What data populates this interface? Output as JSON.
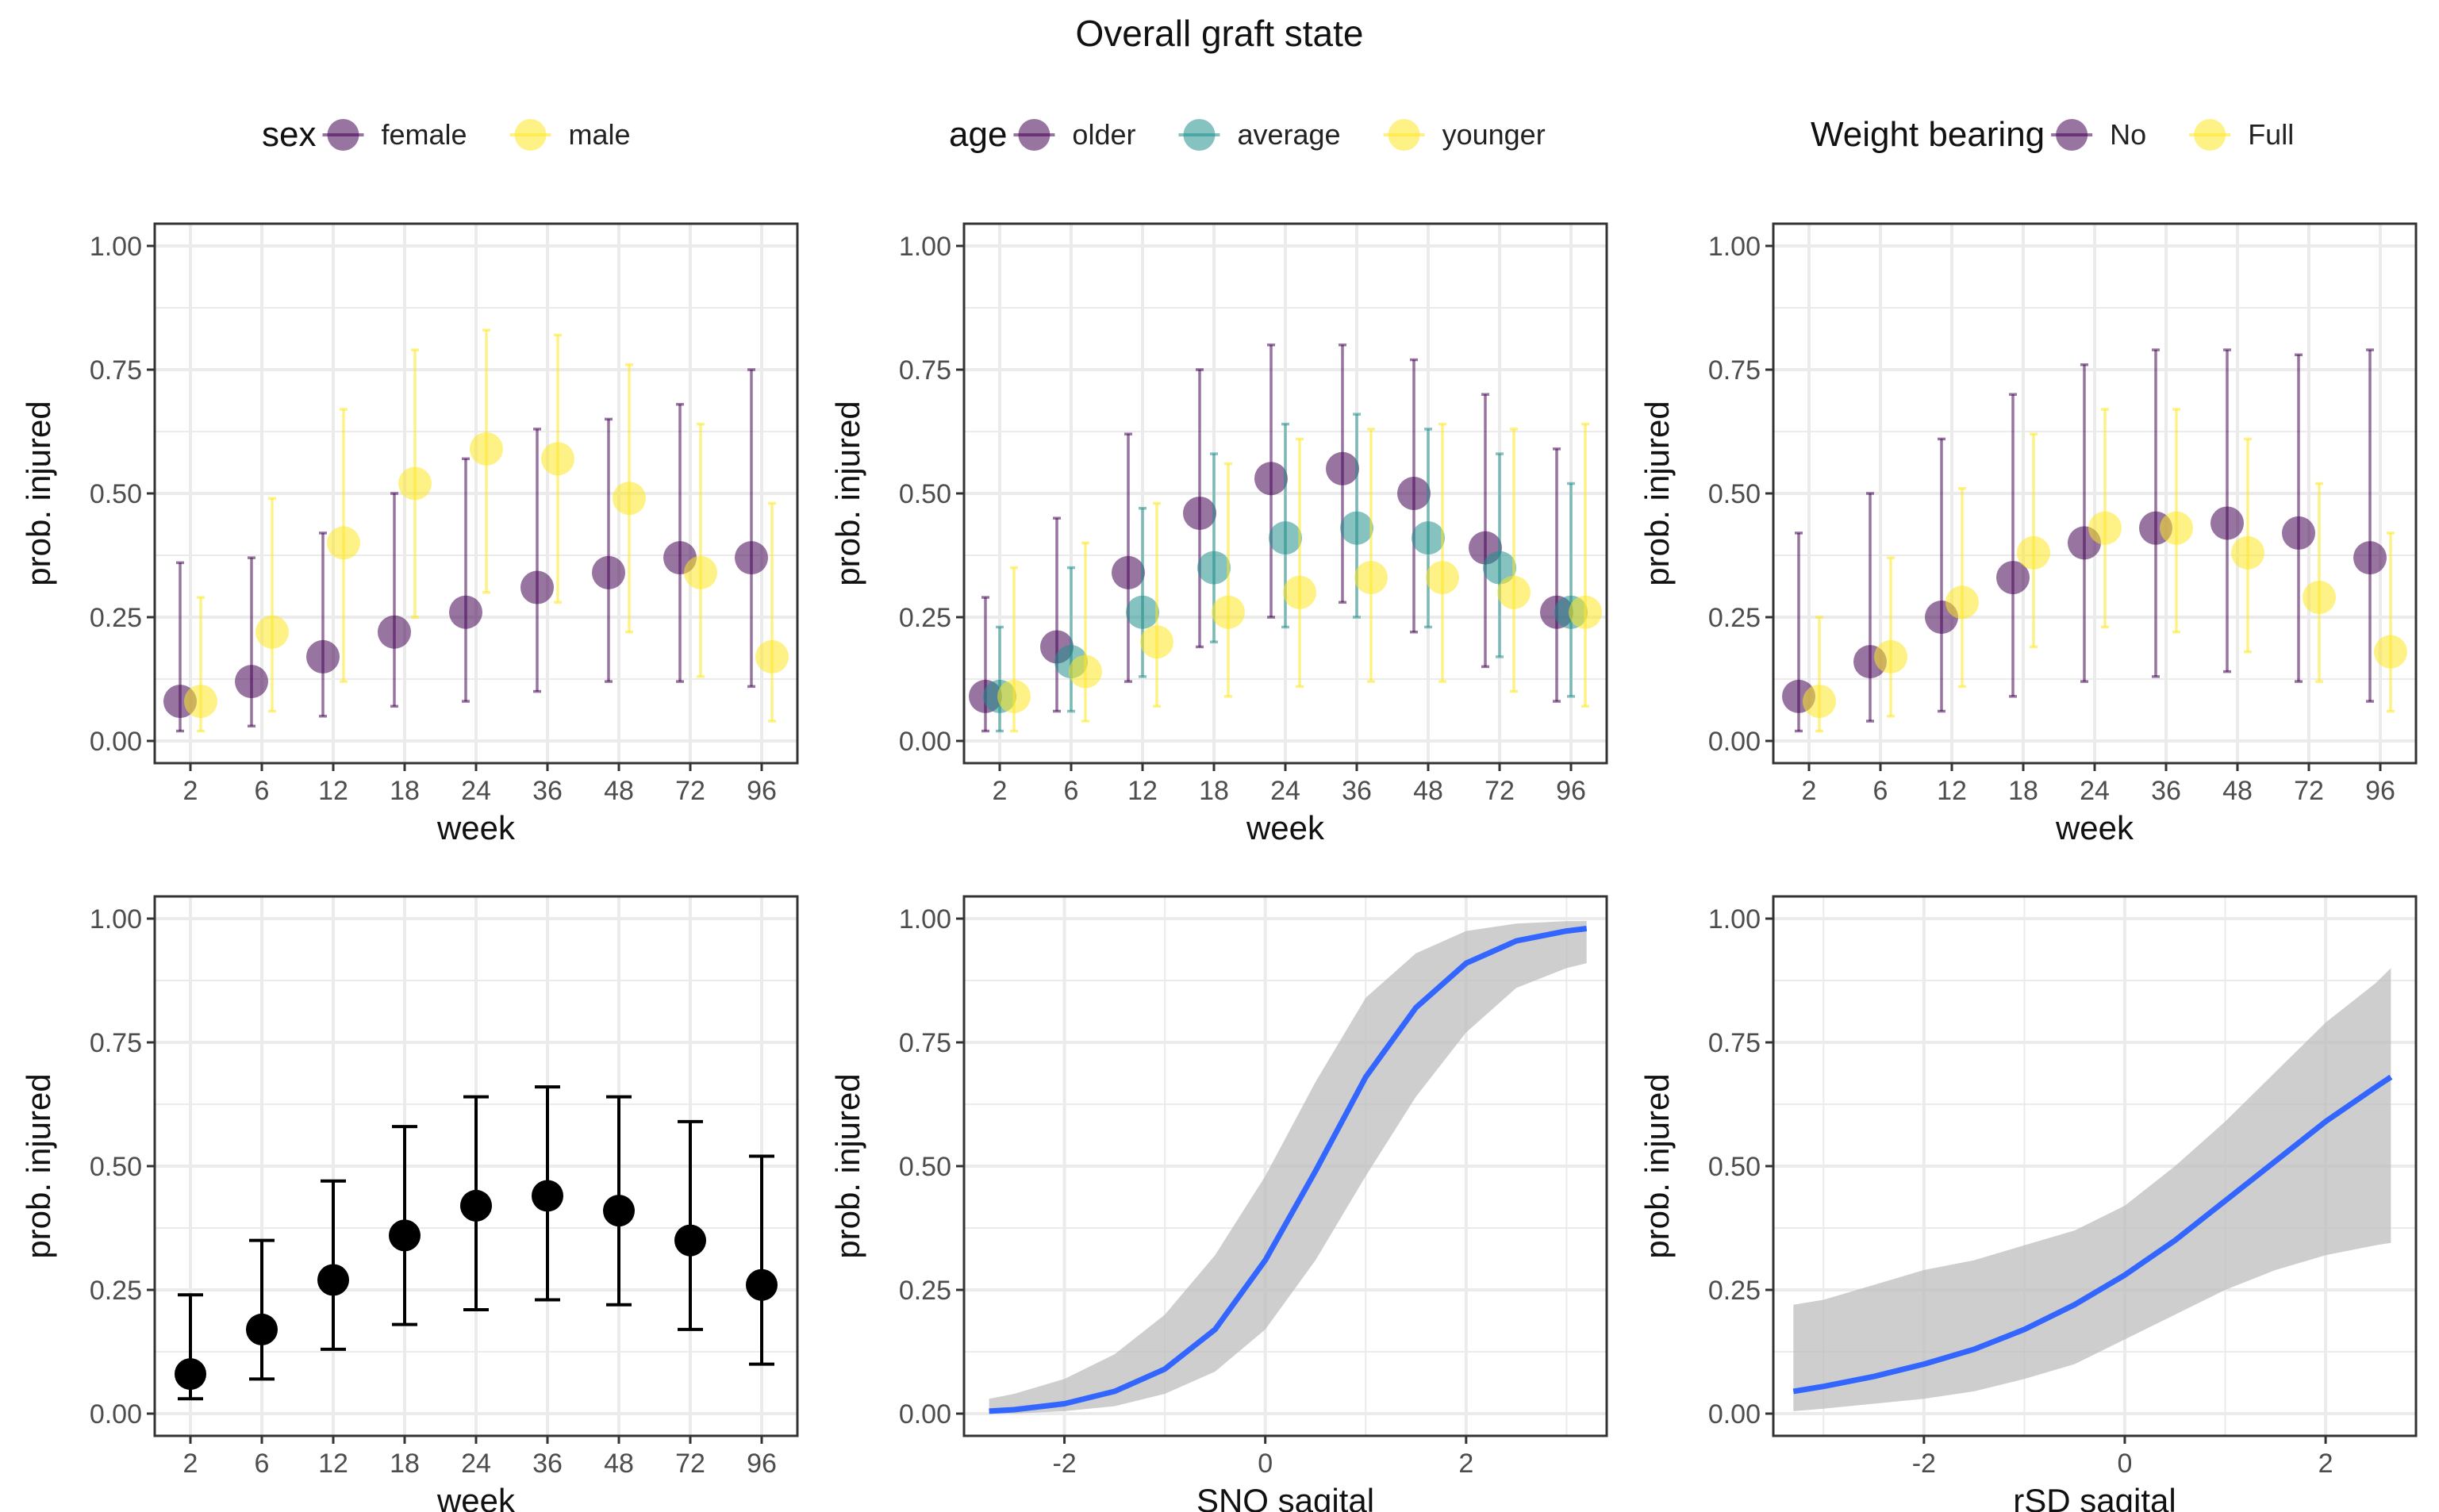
{
  "title": "Overall graft state",
  "colors": {
    "purple": "#440154",
    "teal": "#21908C",
    "yellow": "#FDE725",
    "black": "#000000",
    "line": "#3366FF",
    "ribbon": "#BEBEBE",
    "grid": "#EBEBEB",
    "axis": "#333333"
  },
  "chart_data": [
    {
      "id": "sex",
      "type": "scatter",
      "legend_title": "sex",
      "xlabel": "week",
      "ylabel": "prob. injured",
      "categories": [
        "2",
        "6",
        "12",
        "18",
        "24",
        "36",
        "48",
        "72",
        "96"
      ],
      "ylim": [
        0,
        1
      ],
      "yticks": [
        "0.00",
        "0.25",
        "0.50",
        "0.75",
        "1.00"
      ],
      "series": [
        {
          "name": "female",
          "color": "#440154",
          "values": [
            0.08,
            0.12,
            0.17,
            0.22,
            0.26,
            0.31,
            0.34,
            0.37,
            0.37
          ],
          "lower": [
            0.02,
            0.03,
            0.05,
            0.07,
            0.08,
            0.1,
            0.12,
            0.12,
            0.11
          ],
          "upper": [
            0.36,
            0.37,
            0.42,
            0.5,
            0.57,
            0.63,
            0.65,
            0.68,
            0.75
          ]
        },
        {
          "name": "male",
          "color": "#FDE725",
          "values": [
            0.08,
            0.22,
            0.4,
            0.52,
            0.59,
            0.57,
            0.49,
            0.34,
            0.17
          ],
          "lower": [
            0.02,
            0.06,
            0.12,
            0.25,
            0.3,
            0.28,
            0.22,
            0.13,
            0.04
          ],
          "upper": [
            0.29,
            0.49,
            0.67,
            0.79,
            0.83,
            0.82,
            0.76,
            0.64,
            0.48
          ]
        }
      ]
    },
    {
      "id": "age",
      "type": "scatter",
      "legend_title": "age",
      "xlabel": "week",
      "ylabel": "prob. injured",
      "categories": [
        "2",
        "6",
        "12",
        "18",
        "24",
        "36",
        "48",
        "72",
        "96"
      ],
      "ylim": [
        0,
        1
      ],
      "yticks": [
        "0.00",
        "0.25",
        "0.50",
        "0.75",
        "1.00"
      ],
      "series": [
        {
          "name": "older",
          "color": "#440154",
          "values": [
            0.09,
            0.19,
            0.34,
            0.46,
            0.53,
            0.55,
            0.5,
            0.39,
            0.26
          ],
          "lower": [
            0.02,
            0.06,
            0.12,
            0.19,
            0.25,
            0.28,
            0.22,
            0.15,
            0.08
          ],
          "upper": [
            0.29,
            0.45,
            0.62,
            0.75,
            0.8,
            0.8,
            0.77,
            0.7,
            0.59
          ]
        },
        {
          "name": "average",
          "color": "#21908C",
          "values": [
            0.09,
            0.16,
            0.26,
            0.35,
            0.41,
            0.43,
            0.41,
            0.35,
            0.26
          ],
          "lower": [
            0.02,
            0.06,
            0.13,
            0.2,
            0.23,
            0.25,
            0.23,
            0.17,
            0.09
          ],
          "upper": [
            0.23,
            0.35,
            0.47,
            0.58,
            0.64,
            0.66,
            0.63,
            0.58,
            0.52
          ]
        },
        {
          "name": "younger",
          "color": "#FDE725",
          "values": [
            0.09,
            0.14,
            0.2,
            0.26,
            0.3,
            0.33,
            0.33,
            0.3,
            0.26
          ],
          "lower": [
            0.02,
            0.04,
            0.07,
            0.09,
            0.11,
            0.12,
            0.12,
            0.1,
            0.07
          ],
          "upper": [
            0.35,
            0.4,
            0.48,
            0.56,
            0.61,
            0.63,
            0.64,
            0.63,
            0.64
          ]
        }
      ]
    },
    {
      "id": "weight",
      "type": "scatter",
      "legend_title": "Weight bearing",
      "xlabel": "week",
      "ylabel": "prob. injured",
      "categories": [
        "2",
        "6",
        "12",
        "18",
        "24",
        "36",
        "48",
        "72",
        "96"
      ],
      "ylim": [
        0,
        1
      ],
      "yticks": [
        "0.00",
        "0.25",
        "0.50",
        "0.75",
        "1.00"
      ],
      "series": [
        {
          "name": "No",
          "color": "#440154",
          "values": [
            0.09,
            0.16,
            0.25,
            0.33,
            0.4,
            0.43,
            0.44,
            0.42,
            0.37
          ],
          "lower": [
            0.02,
            0.04,
            0.06,
            0.09,
            0.12,
            0.13,
            0.14,
            0.12,
            0.08
          ],
          "upper": [
            0.42,
            0.5,
            0.61,
            0.7,
            0.76,
            0.79,
            0.79,
            0.78,
            0.79
          ]
        },
        {
          "name": "Full",
          "color": "#FDE725",
          "values": [
            0.08,
            0.17,
            0.28,
            0.38,
            0.43,
            0.43,
            0.38,
            0.29,
            0.18
          ],
          "lower": [
            0.02,
            0.05,
            0.11,
            0.19,
            0.23,
            0.22,
            0.18,
            0.12,
            0.06
          ],
          "upper": [
            0.25,
            0.37,
            0.51,
            0.62,
            0.67,
            0.67,
            0.61,
            0.52,
            0.42
          ]
        }
      ]
    },
    {
      "id": "overall",
      "type": "scatter",
      "xlabel": "week",
      "ylabel": "prob. injured",
      "categories": [
        "2",
        "6",
        "12",
        "18",
        "24",
        "36",
        "48",
        "72",
        "96"
      ],
      "ylim": [
        0,
        1
      ],
      "yticks": [
        "0.00",
        "0.25",
        "0.50",
        "0.75",
        "1.00"
      ],
      "series": [
        {
          "name": "overall",
          "color": "#000000",
          "values": [
            0.08,
            0.17,
            0.27,
            0.36,
            0.42,
            0.44,
            0.41,
            0.35,
            0.26
          ],
          "lower": [
            0.03,
            0.07,
            0.13,
            0.18,
            0.21,
            0.23,
            0.22,
            0.17,
            0.1
          ],
          "upper": [
            0.24,
            0.35,
            0.47,
            0.58,
            0.64,
            0.66,
            0.64,
            0.59,
            0.52
          ]
        }
      ]
    },
    {
      "id": "snq",
      "type": "line",
      "xlabel": "SNQ sagital",
      "ylabel": "prob. injured",
      "xlim": [
        -3.0,
        3.4
      ],
      "xticks": [
        -2,
        0,
        2
      ],
      "xtick_labels": [
        "-2",
        "0",
        "2"
      ],
      "ylim": [
        0,
        1
      ],
      "yticks": [
        "0.00",
        "0.25",
        "0.50",
        "0.75",
        "1.00"
      ],
      "x": [
        -2.75,
        -2.5,
        -2.0,
        -1.5,
        -1.0,
        -0.5,
        0.0,
        0.5,
        1.0,
        1.5,
        2.0,
        2.5,
        3.0,
        3.2
      ],
      "y": [
        0.005,
        0.008,
        0.02,
        0.045,
        0.09,
        0.17,
        0.31,
        0.49,
        0.68,
        0.82,
        0.91,
        0.955,
        0.975,
        0.98
      ],
      "lower": [
        0.0,
        0.0,
        0.005,
        0.015,
        0.04,
        0.085,
        0.17,
        0.31,
        0.48,
        0.64,
        0.77,
        0.86,
        0.9,
        0.91
      ],
      "upper": [
        0.03,
        0.04,
        0.07,
        0.12,
        0.2,
        0.32,
        0.48,
        0.67,
        0.84,
        0.93,
        0.975,
        0.99,
        0.995,
        0.995
      ]
    },
    {
      "id": "rsd",
      "type": "line",
      "xlabel": "rSD sagital",
      "ylabel": "prob. injured",
      "xlim": [
        -3.5,
        2.9
      ],
      "xticks": [
        -2,
        0,
        2
      ],
      "xtick_labels": [
        "-2",
        "0",
        "2"
      ],
      "ylim": [
        0,
        1
      ],
      "yticks": [
        "0.00",
        "0.25",
        "0.50",
        "0.75",
        "1.00"
      ],
      "x": [
        -3.3,
        -3.0,
        -2.5,
        -2.0,
        -1.5,
        -1.0,
        -0.5,
        0.0,
        0.5,
        1.0,
        1.5,
        2.0,
        2.5,
        2.65
      ],
      "y": [
        0.045,
        0.055,
        0.075,
        0.1,
        0.13,
        0.17,
        0.22,
        0.28,
        0.35,
        0.43,
        0.51,
        0.59,
        0.66,
        0.68
      ],
      "lower": [
        0.005,
        0.01,
        0.02,
        0.03,
        0.045,
        0.07,
        0.1,
        0.15,
        0.2,
        0.25,
        0.29,
        0.32,
        0.34,
        0.345
      ],
      "upper": [
        0.22,
        0.23,
        0.26,
        0.29,
        0.31,
        0.34,
        0.37,
        0.42,
        0.5,
        0.59,
        0.69,
        0.79,
        0.87,
        0.9
      ]
    }
  ]
}
